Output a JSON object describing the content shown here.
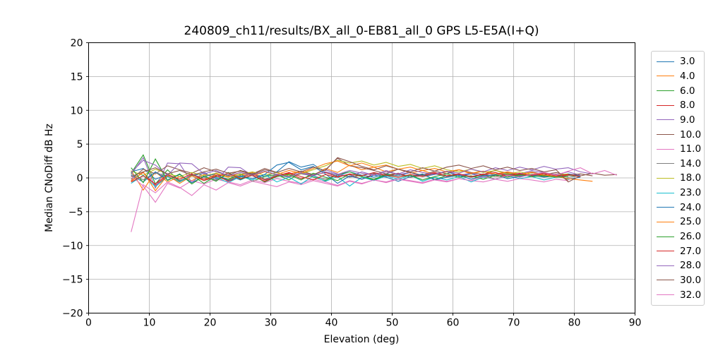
{
  "chart_data": {
    "type": "line",
    "title": "240809_ch11/results/BX_all_0-EB81_all_0 GPS L5-E5A(I+Q)",
    "xlabel": "Elevation (deg)",
    "ylabel": "Median CNoDiff dB Hz",
    "xlim": [
      0,
      90
    ],
    "ylim": [
      -20,
      20
    ],
    "xticks": [
      0,
      10,
      20,
      30,
      40,
      50,
      60,
      70,
      80,
      90
    ],
    "yticks": [
      -20,
      -15,
      -10,
      -5,
      0,
      5,
      10,
      15,
      20
    ],
    "grid": true,
    "legend_position": "right-outside",
    "colors": {
      "background": "#ffffff",
      "grid": "#b0b0b0",
      "spine": "#000000",
      "legend_border": "#cccccc"
    },
    "series": [
      {
        "name": "3.0",
        "color": "#1f77b4",
        "x_start": 7,
        "x_step": 2,
        "y": [
          0.9,
          1.4,
          -0.2,
          0.5,
          -0.4,
          0.3,
          0.7,
          -0.1,
          0.4,
          -0.3,
          0.5,
          0.2,
          0.9,
          2.4,
          1.6,
          2.0,
          0.8,
          0.3,
          0.9,
          0.4,
          0.1,
          0.6,
          0.3,
          0.8,
          0.2,
          0.5,
          0.9,
          0.3,
          0.6,
          0.2,
          0.4,
          0.7,
          0.3,
          0.5,
          0.8,
          0.4,
          0.6,
          0.3
        ]
      },
      {
        "name": "4.0",
        "color": "#ff7f0e",
        "x_start": 7,
        "x_step": 2,
        "y": [
          1.1,
          -1.8,
          0.9,
          -0.6,
          0.2,
          -0.4,
          0.5,
          0.1,
          -0.3,
          0.4,
          0.8,
          -0.2,
          0.3,
          0.6,
          1.0,
          0.4,
          1.4,
          0.8,
          1.9,
          1.2,
          1.6,
          0.9,
          1.3,
          0.7,
          1.1,
          0.5,
          0.9,
          1.2,
          0.6,
          1.0,
          0.4,
          0.8,
          0.5,
          0.9,
          0.3,
          0.6,
          -0.4
        ]
      },
      {
        "name": "6.0",
        "color": "#2ca02c",
        "x_start": 7,
        "x_step": 2,
        "y": [
          0.7,
          3.4,
          -0.9,
          1.2,
          -0.5,
          0.4,
          -0.8,
          0.3,
          -0.2,
          0.6,
          -0.5,
          0.2,
          0.5,
          -0.3,
          0.8,
          0.1,
          -0.4,
          0.5,
          0.9,
          0.2,
          -0.3,
          0.4,
          0.7,
          0.1,
          0.5,
          -0.2,
          0.3,
          0.6,
          0.1,
          0.4,
          -0.2,
          0.5,
          0.2,
          0.6,
          0.3,
          0.1,
          0.4,
          0.2
        ]
      },
      {
        "name": "8.0",
        "color": "#d62728",
        "x_start": 7,
        "x_step": 2,
        "y": [
          -0.4,
          0.8,
          -1.1,
          0.3,
          -0.6,
          0.5,
          -0.2,
          0.4,
          -0.5,
          0.1,
          0.6,
          -0.3,
          0.2,
          0.7,
          -0.1,
          0.4,
          0.8,
          0.2,
          0.5,
          -0.2,
          0.6,
          0.3,
          0.7,
          0.1,
          0.4,
          0.8,
          0.3,
          0.5,
          0.1,
          0.6,
          0.2,
          0.4,
          0.7,
          0.3,
          0.5,
          0.2,
          0.4
        ]
      },
      {
        "name": "9.0",
        "color": "#9467bd",
        "x_start": 7,
        "x_step": 2,
        "y": [
          0.5,
          3.0,
          -1.5,
          2.2,
          2.1,
          -0.7,
          0.9,
          -0.4,
          1.6,
          1.5,
          0.3,
          -0.5,
          0.6,
          0.1,
          0.8,
          0.4,
          1.2,
          0.6,
          0.2,
          0.9,
          0.4,
          1.1,
          0.5,
          0.8,
          0.3,
          0.6,
          1.0,
          0.4,
          0.7,
          0.2,
          0.5,
          0.9,
          0.6,
          1.1,
          0.8,
          0.5,
          0.9,
          0.4
        ]
      },
      {
        "name": "10.0",
        "color": "#8c564b",
        "x_start": 7,
        "x_step": 2,
        "y": [
          -0.2,
          1.3,
          0.6,
          1.8,
          1.2,
          0.7,
          1.5,
          0.9,
          0.4,
          1.1,
          0.6,
          1.4,
          0.8,
          0.3,
          1.0,
          0.5,
          1.2,
          2.9,
          1.8,
          1.5,
          1.1,
          0.6,
          1.3,
          0.8,
          0.4,
          1.0,
          0.6,
          1.2,
          0.8,
          0.5,
          1.1,
          0.7,
          0.4,
          0.9,
          0.5,
          0.8,
          0.4,
          0.6,
          0.3
        ]
      },
      {
        "name": "11.0",
        "color": "#e377c2",
        "x_start": 7,
        "x_step": 2,
        "y": [
          0.3,
          -1.2,
          -3.6,
          -0.8,
          -1.5,
          -0.4,
          -0.9,
          -0.2,
          -0.6,
          -1.0,
          -0.3,
          -0.7,
          -0.1,
          -0.5,
          -0.8,
          -0.2,
          -0.6,
          -1.1,
          -0.4,
          -0.8,
          -0.3,
          -0.6,
          -0.1,
          -0.4,
          -0.7,
          -0.2,
          -0.5,
          -0.1,
          -0.4,
          -0.6,
          -0.2,
          -0.5,
          -0.1,
          -0.3,
          -0.6,
          -0.2,
          -0.4
        ]
      },
      {
        "name": "14.0",
        "color": "#7f7f7f",
        "x_start": 7,
        "x_step": 2,
        "y": [
          0.6,
          -0.3,
          0.8,
          0.2,
          -0.5,
          0.4,
          0.1,
          -0.3,
          0.5,
          0.2,
          0.7,
          -0.2,
          0.4,
          0.1,
          0.6,
          0.3,
          -0.2,
          0.5,
          0.1,
          0.4,
          0.7,
          0.2,
          0.5,
          0.1,
          0.3,
          0.6,
          0.2,
          0.4,
          0.1,
          0.5,
          0.2,
          0.6,
          0.3,
          0.5,
          0.2,
          0.4,
          0.1,
          0.3
        ]
      },
      {
        "name": "18.0",
        "color": "#bcbd22",
        "x_start": 7,
        "x_step": 2,
        "y": [
          1.0,
          0.4,
          1.3,
          0.6,
          0.2,
          0.8,
          0.3,
          0.7,
          0.2,
          0.5,
          0.9,
          0.4,
          0.8,
          0.3,
          0.6,
          1.2,
          1.8,
          2.6,
          2.2,
          2.5,
          1.9,
          2.3,
          1.7,
          2.0,
          1.4,
          1.8,
          1.2,
          0.9,
          1.3,
          0.8,
          1.1,
          0.6,
          0.9,
          0.5,
          0.8,
          0.4,
          0.6
        ]
      },
      {
        "name": "23.0",
        "color": "#17becf",
        "x_start": 7,
        "x_step": 2,
        "y": [
          -0.8,
          0.4,
          -1.3,
          0.2,
          -0.6,
          0.3,
          -0.4,
          0.1,
          -0.7,
          0.2,
          -0.3,
          0.5,
          -0.6,
          0.1,
          -0.9,
          0.3,
          -0.5,
          0.2,
          -1.2,
          0.1,
          -0.4,
          0.3,
          -0.2,
          0.4,
          -0.5,
          0.1,
          -0.3,
          0.2,
          -0.6,
          0.1,
          -0.2,
          0.3,
          -0.1,
          0.2,
          -0.3,
          0.1
        ]
      },
      {
        "name": "24.0",
        "color": "#1f77b4",
        "x_start": 7,
        "x_step": 2,
        "y": [
          0.4,
          -0.6,
          0.9,
          -0.3,
          0.5,
          -0.7,
          0.2,
          0.6,
          -0.4,
          0.3,
          -0.1,
          0.5,
          1.9,
          2.3,
          1.2,
          1.7,
          0.6,
          -0.8,
          0.3,
          -0.2,
          0.4,
          0.1,
          -0.5,
          0.2,
          0.6,
          -0.3,
          0.1,
          0.4,
          -0.2,
          0.3,
          0.5,
          -0.1,
          0.2,
          0.4,
          0.1,
          0.3,
          -0.2,
          0.1
        ]
      },
      {
        "name": "25.0",
        "color": "#ff7f0e",
        "x_start": 7,
        "x_step": 2,
        "y": [
          -0.5,
          0.9,
          -1.9,
          0.4,
          -0.8,
          0.3,
          -0.4,
          0.6,
          0.1,
          0.8,
          0.3,
          0.9,
          0.5,
          1.1,
          0.7,
          1.4,
          2.1,
          2.5,
          1.8,
          2.2,
          1.6,
          1.9,
          1.3,
          1.6,
          1.1,
          1.4,
          0.9,
          1.2,
          0.7,
          1.0,
          0.6,
          0.9,
          0.5,
          0.8,
          0.4,
          0.2,
          -0.1,
          -0.3,
          -0.5
        ]
      },
      {
        "name": "26.0",
        "color": "#2ca02c",
        "x_start": 7,
        "x_step": 2,
        "y": [
          1.5,
          -0.7,
          2.8,
          -0.4,
          0.6,
          -0.9,
          0.3,
          -0.5,
          0.8,
          -0.2,
          0.4,
          -0.6,
          0.2,
          0.5,
          -0.3,
          0.7,
          0.1,
          -0.4,
          0.6,
          0.2,
          -0.2,
          0.5,
          0.1,
          0.4,
          -0.3,
          0.2,
          0.6,
          0.1,
          0.3,
          -0.2,
          0.4,
          0.1,
          0.5,
          0.2,
          0.3,
          0.1,
          0.2
        ]
      },
      {
        "name": "27.0",
        "color": "#d62728",
        "x_start": 7,
        "x_step": 2,
        "y": [
          -0.6,
          0.3,
          -0.9,
          0.5,
          -0.2,
          0.6,
          -0.4,
          0.2,
          0.7,
          -0.1,
          0.4,
          -0.5,
          0.3,
          0.8,
          0.2,
          -0.3,
          0.5,
          0.1,
          0.6,
          0.3,
          0.8,
          0.4,
          0.1,
          0.5,
          0.2,
          0.7,
          0.3,
          0.6,
          0.2,
          0.5,
          0.8,
          0.3,
          0.6,
          0.4,
          0.7,
          0.3,
          0.5,
          0.2
        ]
      },
      {
        "name": "28.0",
        "color": "#9467bd",
        "x_start": 7,
        "x_step": 2,
        "y": [
          0.8,
          2.6,
          1.9,
          0.4,
          2.2,
          2.1,
          0.6,
          1.1,
          0.3,
          0.8,
          0.4,
          1.0,
          0.5,
          0.2,
          0.7,
          0.3,
          0.9,
          0.5,
          1.1,
          0.7,
          0.4,
          0.9,
          0.6,
          1.2,
          0.8,
          0.5,
          1.0,
          0.7,
          1.3,
          0.9,
          1.5,
          1.1,
          1.6,
          1.2,
          1.7,
          1.3,
          1.5,
          0.9,
          0.6
        ]
      },
      {
        "name": "30.0",
        "color": "#8c564b",
        "x_start": 7,
        "x_step": 2,
        "y": [
          0.2,
          0.9,
          1.5,
          0.6,
          1.1,
          0.4,
          0.9,
          1.3,
          0.7,
          1.0,
          0.5,
          1.2,
          0.8,
          1.4,
          0.9,
          1.6,
          1.1,
          3.0,
          2.4,
          1.7,
          1.2,
          1.8,
          1.3,
          0.9,
          1.5,
          1.0,
          1.6,
          1.9,
          1.4,
          1.8,
          1.2,
          1.6,
          1.1,
          1.4,
          0.9,
          1.2,
          -0.6,
          0.3,
          0.7,
          0.4,
          0.5
        ]
      },
      {
        "name": "32.0",
        "color": "#e377c2",
        "x_start": 7,
        "x_step": 2,
        "y": [
          -8.0,
          -1.0,
          -2.2,
          -0.6,
          -1.4,
          -2.6,
          -1.0,
          -1.8,
          -0.7,
          -1.2,
          -0.5,
          -0.9,
          -1.3,
          -0.6,
          -1.0,
          -0.4,
          -0.8,
          -1.2,
          -0.5,
          -0.9,
          -0.3,
          -0.7,
          -0.2,
          -0.5,
          -0.8,
          -0.3,
          -0.6,
          -0.1,
          -0.4,
          0.2,
          -0.2,
          0.4,
          0.1,
          0.5,
          0.8,
          0.4,
          1.0,
          1.5,
          0.6,
          1.1,
          0.4
        ]
      }
    ]
  }
}
